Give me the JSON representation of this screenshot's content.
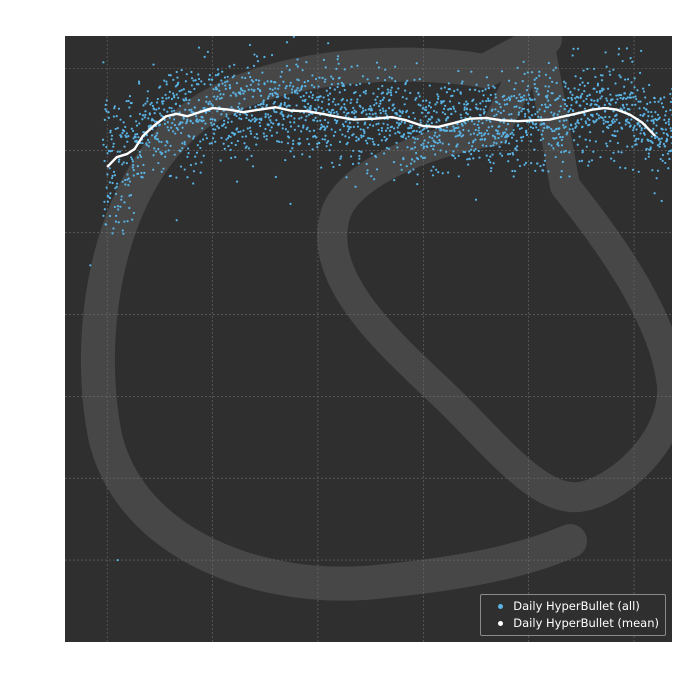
{
  "chart_data": {
    "type": "scatter",
    "title": "",
    "xlabel": "",
    "ylabel": "",
    "xlim": [
      -4,
      572
    ],
    "ylim": [
      -1,
      6.4
    ],
    "x_grid": [
      36,
      136,
      236,
      336,
      436,
      536
    ],
    "y_grid": [
      0,
      1,
      2,
      3,
      4,
      5,
      6
    ],
    "grid": true,
    "legend_position": "bottom-right",
    "background_color": "#2f2f2f",
    "watermark": "horse-logo",
    "series": [
      {
        "name": "Daily HyperBullet (all)",
        "kind": "scatter",
        "color": "#5ab4e5",
        "count_per_day": 4,
        "days": 560,
        "spread": 0.3,
        "outliers": [
          {
            "x": 80,
            "y": 6.05
          },
          {
            "x": 102,
            "y": 5.96
          },
          {
            "x": 116,
            "y": 5.96
          },
          {
            "x": 120,
            "y": 5.86
          },
          {
            "x": 136,
            "y": 5.55
          },
          {
            "x": 226,
            "y": 5.5
          },
          {
            "x": 245,
            "y": 5.5
          },
          {
            "x": 509,
            "y": 6.2
          },
          {
            "x": 57,
            "y": 4.3
          },
          {
            "x": 102,
            "y": 4.15
          },
          {
            "x": 210,
            "y": 4.35
          },
          {
            "x": 386,
            "y": 4.4
          },
          {
            "x": 46,
            "y": 0.0
          },
          {
            "x": 20,
            "y": 3.6
          },
          {
            "x": 42,
            "y": 4.05
          }
        ]
      },
      {
        "name": "Daily HyperBullet (mean)",
        "kind": "line",
        "color": "#ffffff",
        "points": [
          {
            "x": 36,
            "y": 4.8
          },
          {
            "x": 45,
            "y": 4.92
          },
          {
            "x": 55,
            "y": 4.96
          },
          {
            "x": 62,
            "y": 5.02
          },
          {
            "x": 70,
            "y": 5.18
          },
          {
            "x": 80,
            "y": 5.3
          },
          {
            "x": 92,
            "y": 5.42
          },
          {
            "x": 102,
            "y": 5.45
          },
          {
            "x": 112,
            "y": 5.42
          },
          {
            "x": 124,
            "y": 5.47
          },
          {
            "x": 136,
            "y": 5.52
          },
          {
            "x": 152,
            "y": 5.5
          },
          {
            "x": 165,
            "y": 5.47
          },
          {
            "x": 180,
            "y": 5.5
          },
          {
            "x": 196,
            "y": 5.53
          },
          {
            "x": 210,
            "y": 5.49
          },
          {
            "x": 226,
            "y": 5.48
          },
          {
            "x": 240,
            "y": 5.45
          },
          {
            "x": 256,
            "y": 5.41
          },
          {
            "x": 270,
            "y": 5.38
          },
          {
            "x": 290,
            "y": 5.39
          },
          {
            "x": 306,
            "y": 5.41
          },
          {
            "x": 320,
            "y": 5.37
          },
          {
            "x": 336,
            "y": 5.3
          },
          {
            "x": 350,
            "y": 5.29
          },
          {
            "x": 366,
            "y": 5.34
          },
          {
            "x": 380,
            "y": 5.39
          },
          {
            "x": 396,
            "y": 5.4
          },
          {
            "x": 410,
            "y": 5.37
          },
          {
            "x": 426,
            "y": 5.36
          },
          {
            "x": 440,
            "y": 5.37
          },
          {
            "x": 456,
            "y": 5.38
          },
          {
            "x": 470,
            "y": 5.42
          },
          {
            "x": 484,
            "y": 5.46
          },
          {
            "x": 496,
            "y": 5.5
          },
          {
            "x": 508,
            "y": 5.52
          },
          {
            "x": 520,
            "y": 5.5
          },
          {
            "x": 532,
            "y": 5.44
          },
          {
            "x": 544,
            "y": 5.34
          },
          {
            "x": 556,
            "y": 5.18
          }
        ]
      }
    ]
  },
  "legend": {
    "items": [
      {
        "label": "Daily HyperBullet (all)",
        "color": "#5ab4e5"
      },
      {
        "label": "Daily HyperBullet (mean)",
        "color": "#ffffff"
      }
    ]
  }
}
